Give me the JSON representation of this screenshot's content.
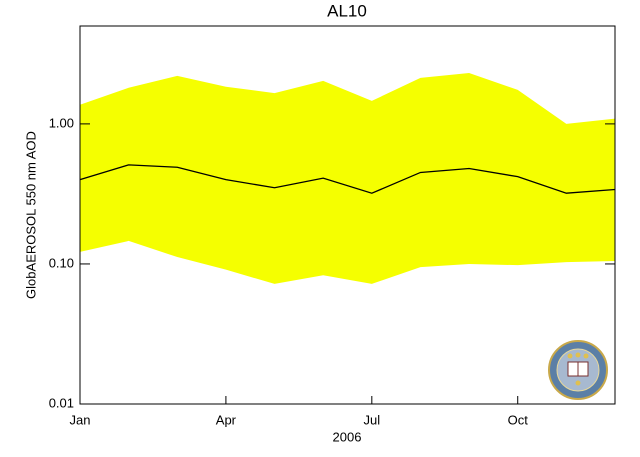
{
  "chart_data": {
    "type": "band-line",
    "title": "AL10",
    "x_label": "2006",
    "y_label": "GlobAEROSOL 550 nm AOD",
    "categories": [
      "Jan",
      null,
      null,
      "Apr",
      null,
      null,
      "Jul",
      null,
      null,
      "Oct",
      null,
      null
    ],
    "values": [
      0.4,
      0.51,
      0.49,
      0.4,
      0.35,
      0.41,
      0.32,
      0.45,
      0.48,
      0.42,
      0.32,
      0.34
    ],
    "band_upper": [
      1.37,
      1.81,
      2.2,
      1.84,
      1.66,
      2.03,
      1.46,
      2.13,
      2.31,
      1.75,
      1.0,
      1.09
    ],
    "band_lower": [
      0.122,
      0.146,
      0.112,
      0.091,
      0.072,
      0.083,
      0.072,
      0.095,
      0.1,
      0.098,
      0.103,
      0.105
    ],
    "line_color": "#000000",
    "band_color": "#f5ff00",
    "log_y": true,
    "ylim": [
      0.01,
      5
    ],
    "yticks": [
      {
        "value": 0.01,
        "label": "0.01"
      },
      {
        "value": 0.1,
        "label": "0.10"
      },
      {
        "value": 1,
        "label": "1.00"
      }
    ]
  }
}
